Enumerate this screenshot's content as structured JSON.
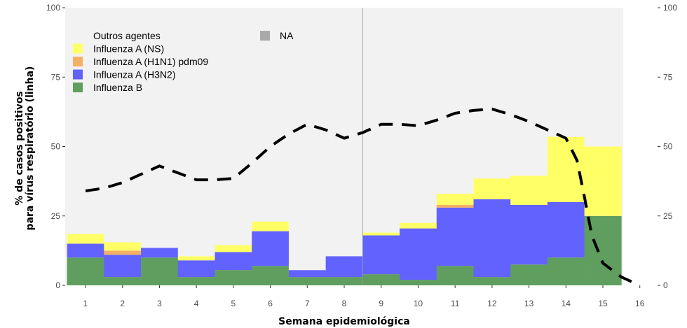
{
  "chart_data": {
    "type": "bar",
    "stacked": true,
    "xlabel": "Semana epidemiológica",
    "ylabel_line1": "% de casos positivos",
    "ylabel_line2": "para vírus respiratório (linha)",
    "ylim": [
      0,
      100
    ],
    "y_ticks": [
      "0",
      "25",
      "50",
      "75",
      "100"
    ],
    "x_ticks": [
      "1",
      "2",
      "3",
      "4",
      "5",
      "6",
      "7",
      "8",
      "9",
      "10",
      "11",
      "12",
      "13",
      "14",
      "15",
      "16"
    ],
    "categories": [
      1,
      2,
      3,
      4,
      5,
      6,
      7,
      8,
      9,
      10,
      11,
      12,
      13,
      14,
      15
    ],
    "grid": false,
    "vertical_marker_x": 8.5,
    "legend_position": "top-left",
    "series": [
      {
        "name": "Influenza B",
        "color": "#5f9e5f",
        "values": [
          10,
          3,
          10,
          3,
          5.5,
          7,
          3,
          3,
          4,
          2,
          7,
          3,
          7.5,
          10,
          25
        ]
      },
      {
        "name": "Influenza A (H3N2)",
        "color": "#6262ff",
        "values": [
          5,
          8,
          3.5,
          6,
          6.5,
          12.5,
          2.5,
          7.5,
          14,
          18.5,
          21,
          28,
          21.5,
          20,
          0
        ]
      },
      {
        "name": "Influenza A (H1N1) pdm09",
        "color": "#f4b066",
        "values": [
          0,
          1.5,
          0,
          0,
          0,
          0,
          0,
          0,
          0,
          0,
          1,
          0,
          0,
          0,
          0
        ]
      },
      {
        "name": "Influenza A (NS)",
        "color": "#ffff66",
        "values": [
          3.5,
          3,
          0,
          1.5,
          2.5,
          3.5,
          0,
          0,
          1,
          2,
          4,
          7.5,
          10.5,
          23.5,
          25
        ]
      },
      {
        "name": "Outros agentes",
        "color": "#f2f2f2",
        "values": [
          81.5,
          84.5,
          86.5,
          89.5,
          85.5,
          77,
          94.5,
          89.5,
          81,
          77.5,
          67,
          61.5,
          60.5,
          46.5,
          50
        ]
      }
    ],
    "na_legend": {
      "name": "NA",
      "color": "#a9a9a9"
    },
    "line": {
      "name": "% de casos positivos (linha)",
      "style": "dashed",
      "color": "#000000",
      "x": [
        1,
        1.5,
        2,
        2.5,
        3,
        3.5,
        4,
        4.5,
        5,
        5.5,
        6,
        6.5,
        7,
        7.5,
        8,
        8.5,
        9,
        9.5,
        10,
        10.5,
        11,
        11.5,
        12,
        12.5,
        13,
        13.5,
        14,
        14.3,
        14.5,
        14.7,
        15,
        15.5,
        16
      ],
      "y": [
        34,
        35,
        37,
        40,
        43,
        40.5,
        38,
        38,
        38.5,
        44,
        50,
        54.5,
        58,
        56,
        53,
        55,
        58,
        58,
        57.5,
        59.5,
        62,
        63,
        63.5,
        61.5,
        59,
        56,
        53,
        45,
        32,
        18,
        8,
        3,
        0
      ]
    },
    "right_axis": {
      "ylim": [
        0,
        100
      ],
      "ticks": [
        "0",
        "25",
        "50",
        "75",
        "100"
      ]
    }
  }
}
